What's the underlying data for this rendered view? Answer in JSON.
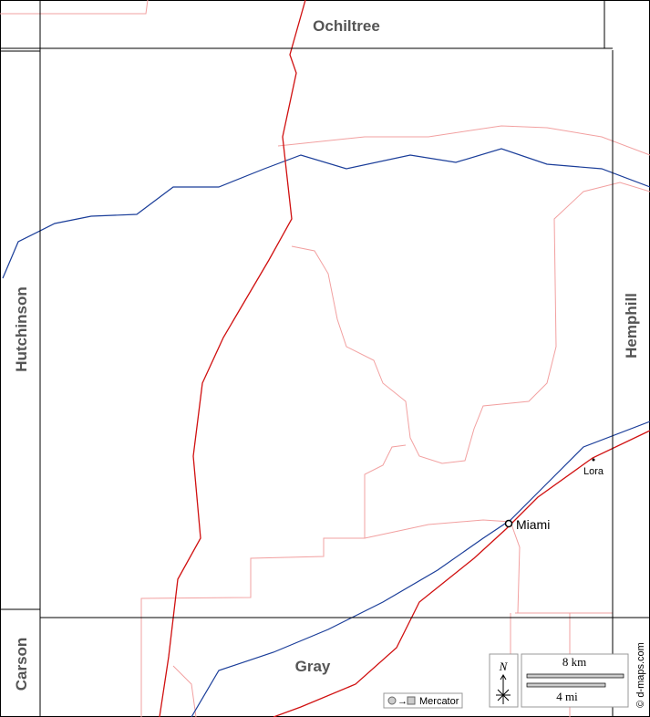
{
  "counties": [
    "Ochiltree",
    "Hutchinson",
    "Hemphill",
    "Carson",
    "Gray"
  ],
  "places": [
    "Miami",
    "Lora"
  ],
  "scale": {
    "km": "8 km",
    "mi": "4 mi"
  },
  "compass": "N",
  "projection": "Mercator",
  "credit": "© d-maps.com"
}
